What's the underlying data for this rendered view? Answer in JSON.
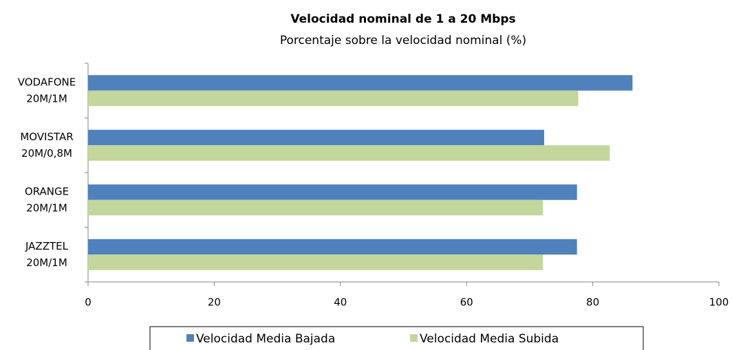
{
  "chart_data": {
    "type": "bar",
    "orientation": "horizontal",
    "title": "Velocidad nominal de 1 a 20 Mbps",
    "subtitle": "Porcentaje sobre la velocidad nominal (%)",
    "categories": [
      [
        "VODAFONE",
        "20M/1M"
      ],
      [
        "MOVISTAR",
        "20M/0,8M"
      ],
      [
        "ORANGE",
        "20M/1M"
      ],
      [
        "JAZZTEL",
        "20M/1M"
      ]
    ],
    "series": [
      {
        "name": "Velocidad Media Bajada",
        "color": "#4f81bd",
        "values": [
          86.3,
          72.3,
          77.5,
          77.5
        ]
      },
      {
        "name": "Velocidad Media Subida",
        "color": "#c3d69b",
        "values": [
          77.7,
          82.7,
          72.1,
          72.1
        ]
      }
    ],
    "xlim": [
      0,
      100
    ],
    "xticks": [
      0,
      20,
      40,
      60,
      80,
      100
    ],
    "grid": false,
    "legend": "bottom"
  }
}
